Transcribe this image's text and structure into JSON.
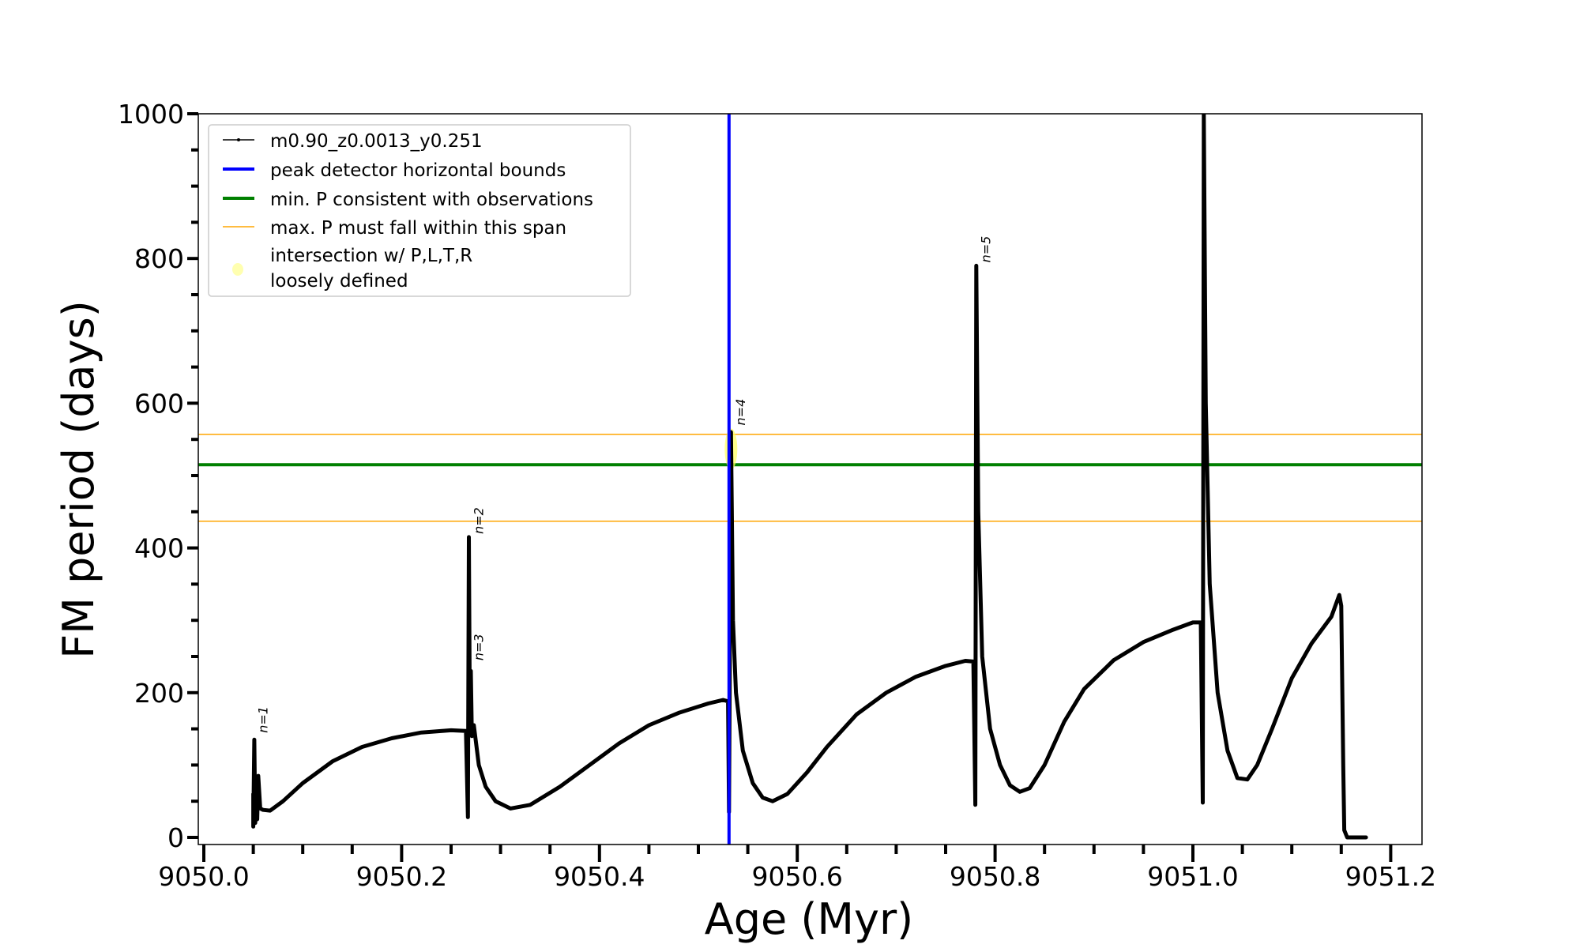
{
  "chart_data": {
    "type": "line",
    "title": "",
    "xlabel": "Age (Myr)",
    "ylabel": "FM period (days)",
    "xlim": [
      9049.994,
      9051.234
    ],
    "ylim": [
      -10,
      1000
    ],
    "x_ticks": [
      9050.0,
      9050.2,
      9050.4,
      9050.6,
      9050.8,
      9051.0,
      9051.2
    ],
    "x_tick_labels": [
      "9050.0",
      "9050.2",
      "9050.4",
      "9050.6",
      "9050.8",
      "9051.0",
      "9051.2"
    ],
    "x_minor_step": 0.05,
    "y_ticks": [
      0,
      200,
      400,
      600,
      800,
      1000
    ],
    "y_tick_labels": [
      "0",
      "200",
      "400",
      "600",
      "800",
      "1000"
    ],
    "y_minor_step": 50,
    "grid": false,
    "legend_placement": "top-left",
    "series": [
      {
        "name": "m0.90_z0.0013_y0.251",
        "color": "#000000",
        "points": [
          [
            9050.05,
            60
          ],
          [
            9050.05,
            15
          ],
          [
            9050.051,
            135
          ],
          [
            9050.052,
            20
          ],
          [
            9050.053,
            80
          ],
          [
            9050.054,
            25
          ],
          [
            9050.055,
            85
          ],
          [
            9050.057,
            40
          ],
          [
            9050.06,
            38
          ],
          [
            9050.067,
            37
          ],
          [
            9050.08,
            50
          ],
          [
            9050.1,
            75
          ],
          [
            9050.13,
            105
          ],
          [
            9050.16,
            125
          ],
          [
            9050.19,
            137
          ],
          [
            9050.22,
            145
          ],
          [
            9050.25,
            148
          ],
          [
            9050.265,
            147
          ],
          [
            9050.267,
            28
          ],
          [
            9050.268,
            415
          ],
          [
            9050.269,
            150
          ],
          [
            9050.27,
            230
          ],
          [
            9050.271,
            140
          ],
          [
            9050.273,
            155
          ],
          [
            9050.278,
            100
          ],
          [
            9050.285,
            70
          ],
          [
            9050.295,
            50
          ],
          [
            9050.31,
            40
          ],
          [
            9050.33,
            45
          ],
          [
            9050.36,
            70
          ],
          [
            9050.39,
            100
          ],
          [
            9050.42,
            130
          ],
          [
            9050.45,
            155
          ],
          [
            9050.48,
            172
          ],
          [
            9050.51,
            185
          ],
          [
            9050.525,
            190
          ],
          [
            9050.53,
            188
          ],
          [
            9050.531,
            35
          ],
          [
            9050.533,
            560
          ],
          [
            9050.535,
            300
          ],
          [
            9050.538,
            200
          ],
          [
            9050.545,
            120
          ],
          [
            9050.555,
            75
          ],
          [
            9050.565,
            55
          ],
          [
            9050.575,
            50
          ],
          [
            9050.59,
            60
          ],
          [
            9050.61,
            90
          ],
          [
            9050.63,
            125
          ],
          [
            9050.66,
            170
          ],
          [
            9050.69,
            200
          ],
          [
            9050.72,
            222
          ],
          [
            9050.75,
            237
          ],
          [
            9050.77,
            244
          ],
          [
            9050.778,
            243
          ],
          [
            9050.78,
            45
          ],
          [
            9050.781,
            790
          ],
          [
            9050.783,
            450
          ],
          [
            9050.787,
            250
          ],
          [
            9050.795,
            150
          ],
          [
            9050.805,
            100
          ],
          [
            9050.815,
            72
          ],
          [
            9050.825,
            63
          ],
          [
            9050.835,
            68
          ],
          [
            9050.85,
            100
          ],
          [
            9050.87,
            160
          ],
          [
            9050.89,
            205
          ],
          [
            9050.92,
            245
          ],
          [
            9050.95,
            270
          ],
          [
            9050.98,
            287
          ],
          [
            9051.0,
            297
          ],
          [
            9051.008,
            297
          ],
          [
            9051.01,
            48
          ],
          [
            9051.011,
            1000
          ],
          [
            9051.013,
            600
          ],
          [
            9051.017,
            350
          ],
          [
            9051.025,
            200
          ],
          [
            9051.035,
            120
          ],
          [
            9051.045,
            82
          ],
          [
            9051.055,
            80
          ],
          [
            9051.065,
            100
          ],
          [
            9051.08,
            150
          ],
          [
            9051.1,
            220
          ],
          [
            9051.12,
            268
          ],
          [
            9051.14,
            305
          ],
          [
            9051.148,
            335
          ],
          [
            9051.15,
            320
          ],
          [
            9051.152,
            100
          ],
          [
            9051.153,
            10
          ],
          [
            9051.156,
            0
          ],
          [
            9051.175,
            0
          ]
        ]
      }
    ],
    "vertical_lines": [
      {
        "name": "peak detector horizontal bounds",
        "x": 9050.531,
        "color": "#0000ff"
      }
    ],
    "horizontal_lines": [
      {
        "name": "min. P consistent with observations",
        "y": 515,
        "color": "#008000"
      },
      {
        "name": "max. P must fall within this span",
        "y": 557,
        "color": "#ffa500"
      },
      {
        "name": "max. P must fall within this span",
        "y": 437,
        "color": "#ffa500"
      }
    ],
    "highlight": {
      "name": "intersection w/ P,L,T,R loosely defined",
      "x": 9050.533,
      "y_range": [
        508,
        565
      ],
      "color": "#ffff66"
    },
    "annotations": [
      {
        "text": "n=1",
        "x": 9050.053,
        "y": 140
      },
      {
        "text": "n=2",
        "x": 9050.271,
        "y": 415
      },
      {
        "text": "n=3",
        "x": 9050.271,
        "y": 240
      },
      {
        "text": "n=4",
        "x": 9050.536,
        "y": 565
      },
      {
        "text": "n=5",
        "x": 9050.784,
        "y": 790
      }
    ],
    "legend": [
      {
        "label": "m0.90_z0.0013_y0.251",
        "style": "marker-line",
        "color": "#000000"
      },
      {
        "label": "peak detector horizontal bounds",
        "style": "line",
        "color": "#0000ff"
      },
      {
        "label": "min. P consistent with observations",
        "style": "line",
        "color": "#008000"
      },
      {
        "label": "max. P must fall within this span",
        "style": "thin-line",
        "color": "#ffa500"
      },
      {
        "label": "intersection w/ P,L,T,R",
        "label2": "loosely defined",
        "style": "dot",
        "color": "#ffffb0"
      }
    ]
  }
}
